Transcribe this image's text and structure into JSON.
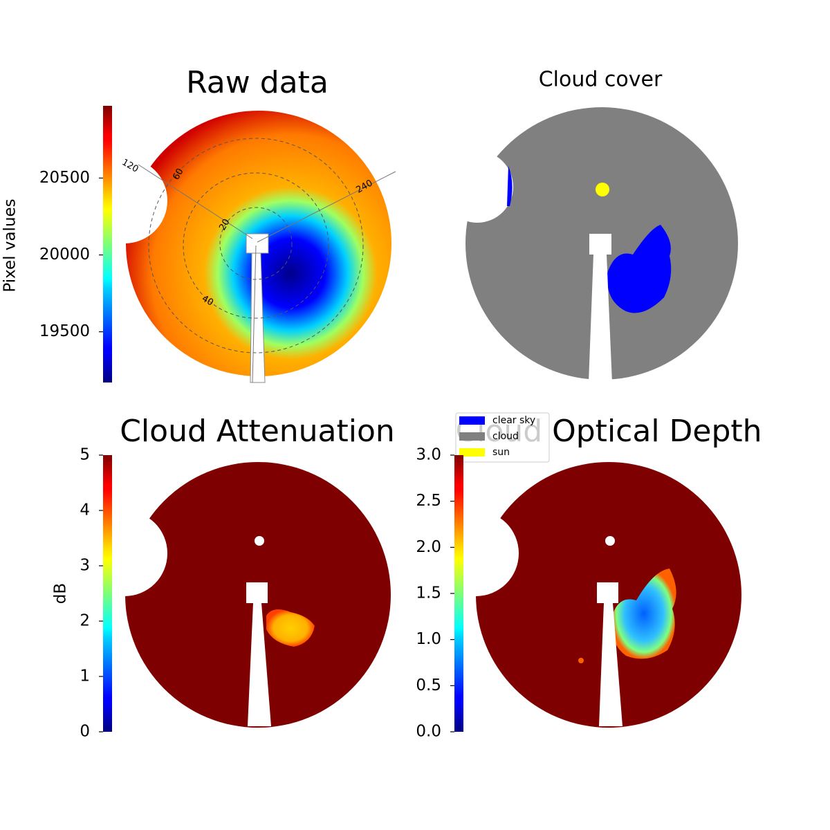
{
  "chart_data": [
    {
      "type": "image",
      "title": "Raw data",
      "colorbar": {
        "label": "Pixel values",
        "colormap": "jet",
        "lim": [
          19170,
          20970
        ],
        "ticks": [
          19500,
          20000,
          20500
        ]
      },
      "polar_labels": [
        120,
        60,
        240,
        20,
        40
      ]
    },
    {
      "type": "image",
      "title": "Cloud cover",
      "legend": [
        {
          "name": "clear sky",
          "color": "#0000ff"
        },
        {
          "name": "cloud",
          "color": "#808080"
        },
        {
          "name": "sun",
          "color": "#ffff00"
        }
      ]
    },
    {
      "type": "image",
      "title": "Cloud Attenuation",
      "colorbar": {
        "label": "dB",
        "colormap": "jet",
        "lim": [
          0,
          5
        ],
        "ticks": [
          0,
          1,
          2,
          3,
          4,
          5
        ]
      }
    },
    {
      "type": "image",
      "title": "Cloud Optical Depth",
      "colorbar": {
        "colormap": "jet",
        "lim": [
          0,
          3
        ],
        "ticks": [
          {
            "value": 0,
            "label": "0.0"
          },
          0.5,
          {
            "value": 1,
            "label": "1.0"
          },
          1.5,
          {
            "value": 2,
            "label": "2.0"
          },
          2.5,
          {
            "value": 3,
            "label": "3.0"
          }
        ]
      }
    }
  ]
}
